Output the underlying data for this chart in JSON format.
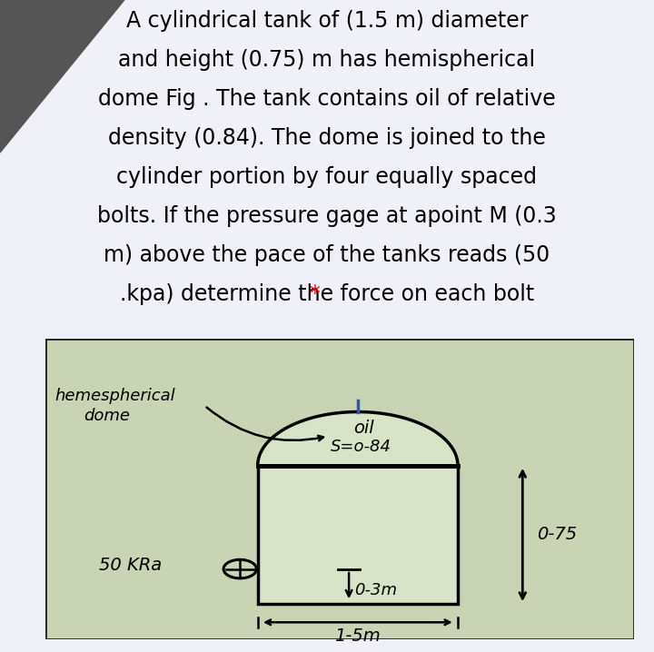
{
  "bg_color": "#f0f0f8",
  "text_lines": [
    {
      "text": "A cylindrical tank of (1.5 m) diameter",
      "color": "black"
    },
    {
      "text": "and height (0.75) m has hemispherical",
      "color": "black"
    },
    {
      "text": "dome Fig . The tank contains oil of relative",
      "color": "black"
    },
    {
      "text": "density (0.84). The dome is joined to the",
      "color": "black"
    },
    {
      "text": "cylinder portion by four equally spaced",
      "color": "black"
    },
    {
      "text": "bolts. If the pressure gage at apoint M (0.3",
      "color": "black"
    },
    {
      "text": "m) above the pace of the tanks reads (50",
      "color": "black"
    },
    {
      "text": ".kpa) determine the force on each bolt",
      "color": "black",
      "star": true
    }
  ],
  "diagram_bg": "#c8d4b4",
  "diagram_border": "#222222",
  "tank_fill": "#c8d4b4",
  "tank_border": "#111111",
  "dome_label_1": "hemespherical",
  "dome_label_2": "dome",
  "oil_label_1": "oil",
  "oil_label_2": "S=o-84",
  "pressure_label": "50 KRa",
  "height_label": "0-75",
  "depth_label": "0-3m",
  "width_label": "1-5m",
  "fontsize_text": 17,
  "fontsize_diagram": 13
}
